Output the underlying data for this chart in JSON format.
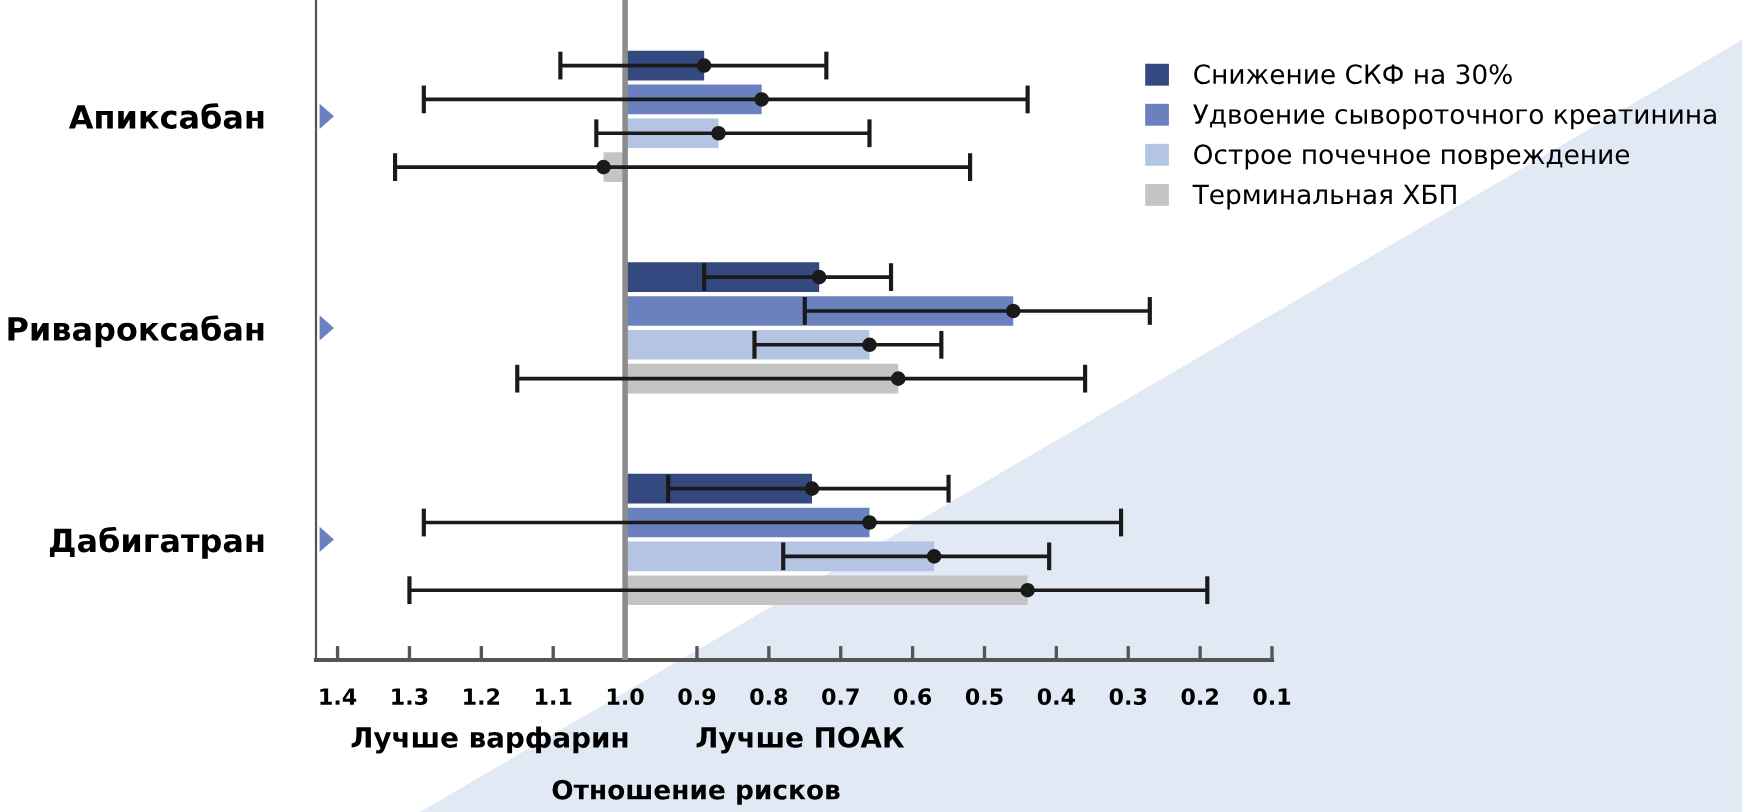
{
  "chart_data": {
    "type": "bar",
    "orientation": "horizontal",
    "categories": [
      "Апиксабан",
      "Ривароксабан",
      "Дабигатран"
    ],
    "series": [
      {
        "name": "Снижение СКФ на 30%",
        "color": "#33497f",
        "base": [
          1.0,
          1.0,
          1.0
        ],
        "values": [
          -0.11,
          -0.27,
          -0.26
        ],
        "errors": [
          [
            0.72,
            1.09
          ],
          [
            0.63,
            0.89
          ],
          [
            0.55,
            0.94
          ]
        ]
      },
      {
        "name": "Удвоение сывороточного креатинина",
        "color": "#6b80bf",
        "base": [
          1.0,
          1.0,
          1.0
        ],
        "values": [
          -0.19,
          -0.54,
          -0.34
        ],
        "errors": [
          [
            0.44,
            1.28
          ],
          [
            0.27,
            0.75
          ],
          [
            0.31,
            1.28
          ]
        ]
      },
      {
        "name": "Острое почечное повреждение",
        "color": "#b4c5e4",
        "base": [
          1.0,
          1.0,
          1.0
        ],
        "values": [
          -0.13,
          -0.34,
          -0.43
        ],
        "errors": [
          [
            0.66,
            1.04
          ],
          [
            0.56,
            0.82
          ],
          [
            0.41,
            0.78
          ]
        ]
      },
      {
        "name": "Терминальная ХБП",
        "color": "#c4c4c4",
        "base": [
          1.0,
          1.0,
          1.0
        ],
        "values": [
          0.03,
          -0.38,
          -0.56
        ],
        "errors": [
          [
            0.52,
            1.32
          ],
          [
            0.36,
            1.15
          ],
          [
            0.19,
            1.3
          ]
        ]
      }
    ],
    "xlim": [
      1.43,
      0.1
    ],
    "xticks": [
      {
        "value": 1.4,
        "label": "1.4"
      },
      {
        "value": 1.3,
        "label": "1.3"
      },
      {
        "value": 1.2,
        "label": "1.2"
      },
      {
        "value": 1.1,
        "label": "1.1"
      },
      {
        "value": 1.0,
        "label": "1.0"
      },
      {
        "value": 0.9,
        "label": "0.9"
      },
      {
        "value": 0.8,
        "label": "0.8"
      },
      {
        "value": 0.7,
        "label": "0.7"
      },
      {
        "value": 0.6,
        "label": "0.6"
      },
      {
        "value": 0.5,
        "label": "0.5"
      },
      {
        "value": 0.4,
        "label": "0.4"
      },
      {
        "value": 0.3,
        "label": "0.3"
      },
      {
        "value": 0.2,
        "label": "0.2"
      },
      {
        "value": 0.1,
        "label": "0.1"
      }
    ],
    "xlabel": "Отношение рисков",
    "annotations": [
      "Лучше варфарин",
      "Лучше ПОАК"
    ],
    "ref_lines": [
      {
        "axis": "x",
        "value": 1.0,
        "color": "#8c8c8c"
      }
    ],
    "marker": "circle",
    "legend": "top right",
    "grid": false
  }
}
